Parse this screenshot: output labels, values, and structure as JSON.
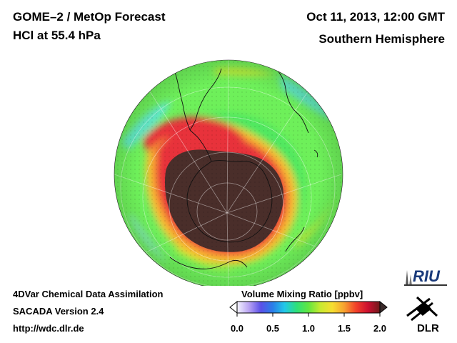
{
  "header": {
    "title_line1": "GOME–2 / MetOp Forecast",
    "title_line2": "HCl at 55.4 hPa",
    "date": "Oct 11, 2013, 12:00 GMT",
    "hemisphere": "Southern Hemisphere"
  },
  "footer": {
    "line1": "4DVar Chemical Data Assimilation",
    "line2": "SACADA Version 2.4",
    "line3": "http://wdc.dlr.de"
  },
  "colorbar": {
    "title": "Volume Mixing Ratio [ppbv]",
    "min": 0.0,
    "max": 2.0,
    "ticks": [
      "0.0",
      "0.5",
      "1.0",
      "1.5",
      "2.0"
    ],
    "stops": [
      "#f4f4ff",
      "#b9a3f3",
      "#5a50e8",
      "#2a7fe8",
      "#22c8e8",
      "#2de07a",
      "#62e640",
      "#c8ea30",
      "#f6de30",
      "#f7a230",
      "#f2402a",
      "#cc1030",
      "#6e1a1a"
    ]
  },
  "map_colors": {
    "vortex_core": "#4a2e2a",
    "collar_red": "#e8303a",
    "collar_orange": "#f89c30",
    "midlat_green": "#4fe860",
    "tropics_green": "#6ef05a",
    "tropics_cyan": "#60e6c8",
    "tropics_yellow": "#c0e838"
  },
  "logos": {
    "riu": "RIU",
    "dlr": "DLR"
  }
}
